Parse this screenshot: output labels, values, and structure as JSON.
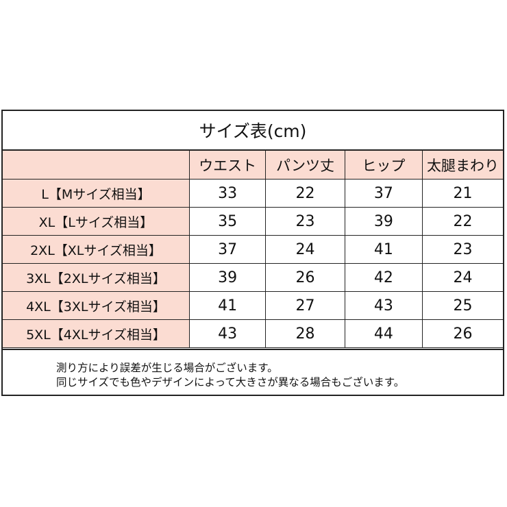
{
  "title": "サイズ表(cm)",
  "header": [
    "",
    "ウエスト",
    "パンツ丈",
    "ヒップ",
    "太腿まわり"
  ],
  "rows": [
    {
      "size": "L【Mサイズ相当】",
      "waist": "33",
      "length": "22",
      "hip": "37",
      "thigh": "21"
    },
    {
      "size": "XL【Lサイズ相当】",
      "waist": "35",
      "length": "23",
      "hip": "39",
      "thigh": "22"
    },
    {
      "size": "2XL【XLサイズ相当】",
      "waist": "37",
      "length": "24",
      "hip": "41",
      "thigh": "23"
    },
    {
      "size": "3XL【2XLサイズ相当】",
      "waist": "39",
      "length": "26",
      "hip": "42",
      "thigh": "24"
    },
    {
      "size": "4XL【3XLサイズ相当】",
      "waist": "41",
      "length": "27",
      "hip": "43",
      "thigh": "25"
    },
    {
      "size": "5XL【4XLサイズ相当】",
      "waist": "43",
      "length": "28",
      "hip": "44",
      "thigh": "26"
    }
  ],
  "notes": [
    "測り方により誤差が生じる場合がございます。",
    "同じサイズでも色やデザインによって大きさが異なる場合もございます。"
  ],
  "colors": {
    "header_bg": "#fbdcd2",
    "border": "#222222"
  }
}
